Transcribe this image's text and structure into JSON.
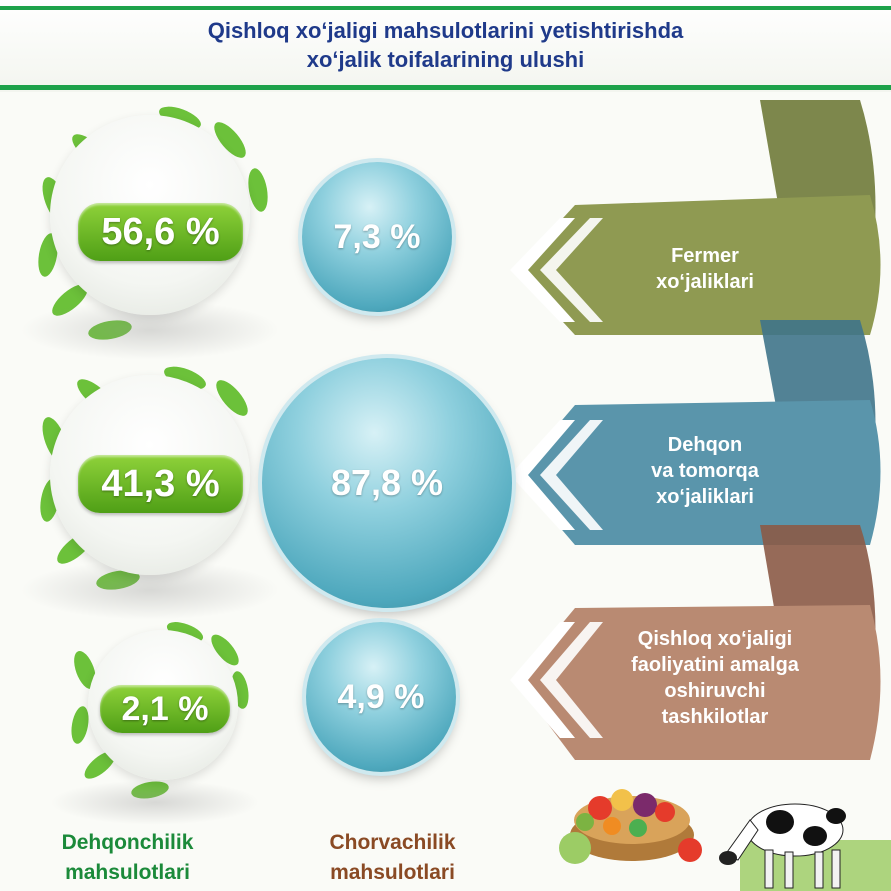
{
  "title": {
    "line1": "Qishloq xo‘jaligi mahsulotlarini yetishtirishda",
    "line2": "xo‘jalik toifalarining ulushi"
  },
  "rows": [
    {
      "category": [
        "Fermer",
        "xo‘jaliklari"
      ],
      "crop_share": "56,6 %",
      "livestock_share": "7,3 %",
      "ribbon_color": "#8f9a52"
    },
    {
      "category": [
        "Dehqon",
        "va tomorqa",
        "xo‘jaliklari"
      ],
      "crop_share": "41,3 %",
      "livestock_share": "87,8 %",
      "ribbon_color": "#5a95ab"
    },
    {
      "category": [
        "Qishloq xo‘jaligi",
        "faoliyatini amalga",
        "oshiruvchi",
        "tashkilotlar"
      ],
      "crop_share": "2,1 %",
      "livestock_share": "4,9 %",
      "ribbon_color": "#b98a72"
    }
  ],
  "columns": {
    "crop": [
      "Dehqonchilik",
      "mahsulotlari"
    ],
    "livestock": [
      "Chorvachilik",
      "mahsulotlari"
    ]
  },
  "colors": {
    "accent_green": "#1da24a",
    "title_blue": "#1f3a8a",
    "crop_label": "#1b8a3a",
    "livestock_label": "#8a4a24"
  },
  "icons": [
    "leaf-wreath-icon",
    "chevron-left-icon",
    "vegetable-basket-icon",
    "cow-icon"
  ]
}
